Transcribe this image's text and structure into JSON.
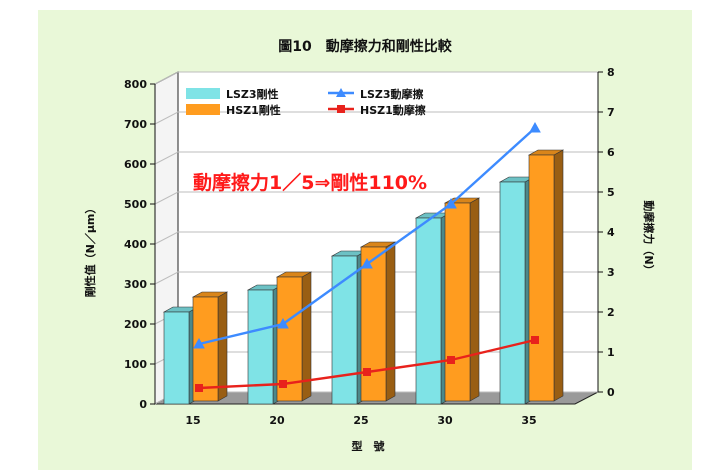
{
  "chart_data": {
    "type": "bar",
    "title": "圖10　動摩擦力和剛性比較",
    "xlabel": "型　號",
    "ylabel": "剛性值（N／μm）",
    "y2label": "動摩擦力（N）",
    "categories": [
      "15",
      "20",
      "25",
      "30",
      "35"
    ],
    "ylim": [
      0,
      800
    ],
    "y2lim": [
      0,
      8
    ],
    "yticks": [
      "0",
      "100",
      "200",
      "300",
      "400",
      "500",
      "600",
      "700",
      "800"
    ],
    "y2ticks": [
      "0",
      "1",
      "2",
      "3",
      "4",
      "5",
      "6",
      "7",
      "8"
    ],
    "series": [
      {
        "name": "LSZ3剛性",
        "kind": "bar",
        "axis": "left",
        "color": "#7fe3e6",
        "values": [
          230,
          285,
          370,
          465,
          555
        ]
      },
      {
        "name": "HSZ1剛性",
        "kind": "bar",
        "axis": "left",
        "color": "#ff9c1f",
        "values": [
          260,
          310,
          385,
          495,
          615
        ]
      },
      {
        "name": "LSZ3動摩擦",
        "kind": "line",
        "axis": "right",
        "color": "#3d8bff",
        "marker": "triangle",
        "values": [
          1.2,
          1.7,
          3.2,
          4.7,
          6.6
        ]
      },
      {
        "name": "HSZ1動摩擦",
        "kind": "line",
        "axis": "right",
        "color": "#e8221c",
        "marker": "square",
        "values": [
          0.1,
          0.2,
          0.5,
          0.8,
          1.3
        ]
      }
    ],
    "annotation": "動摩擦力1／5⇒剛性110%",
    "grid": true,
    "legend": "top-left"
  }
}
